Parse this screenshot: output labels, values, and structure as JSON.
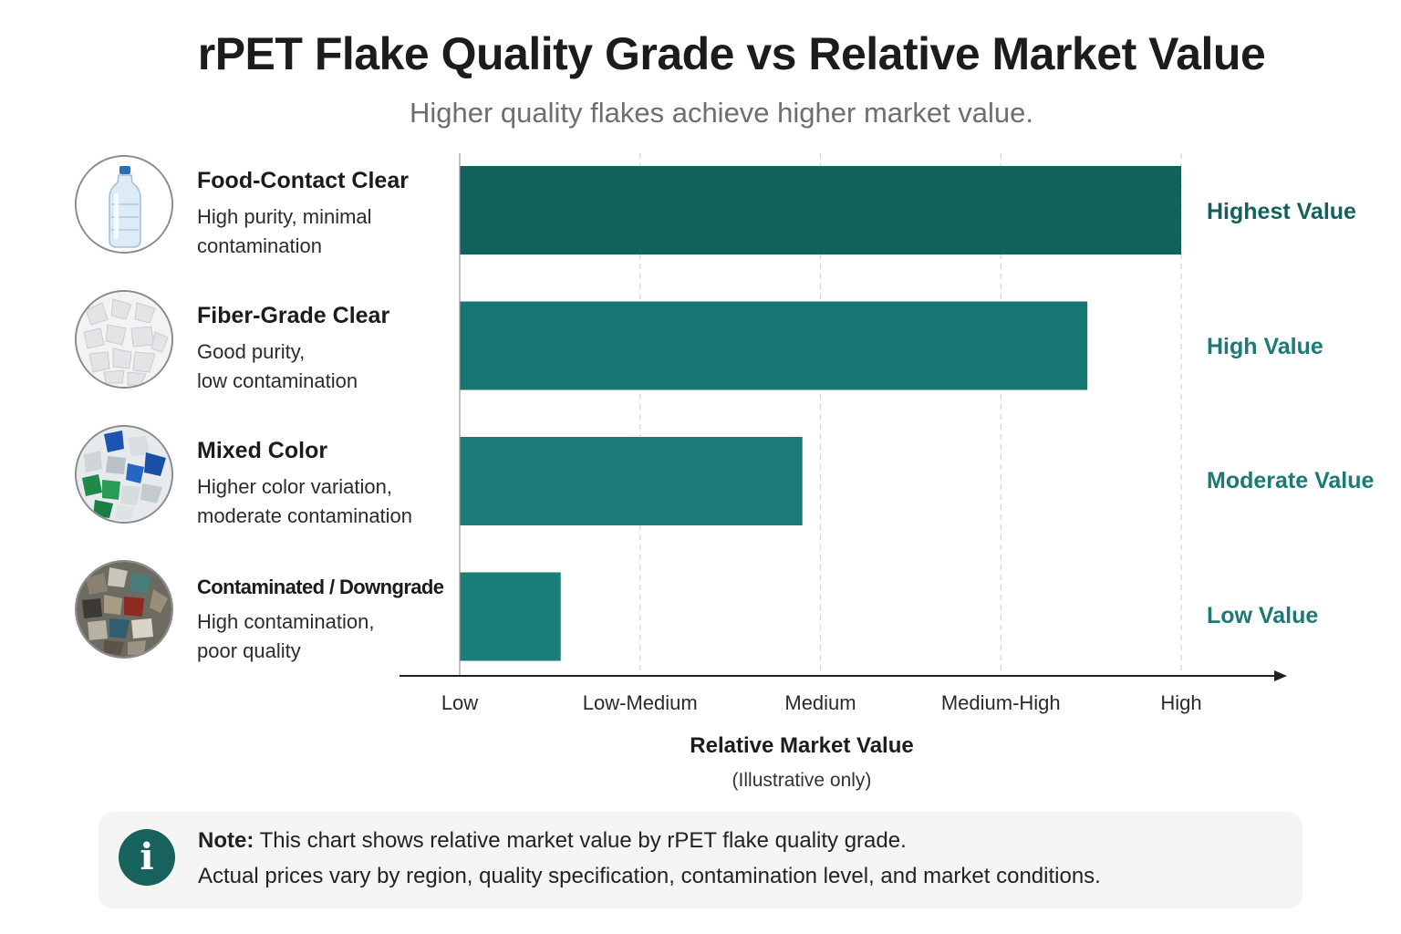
{
  "title": "rPET Flake Quality Grade vs Relative Market Value",
  "subtitle": "Higher quality flakes achieve higher market value.",
  "chart_data": {
    "type": "bar",
    "orientation": "horizontal",
    "categories": [
      "Food-Contact Clear",
      "Fiber-Grade Clear",
      "Mixed Color",
      "Contaminated / Downgrade"
    ],
    "descriptions": [
      [
        "High purity, minimal",
        "contamination"
      ],
      [
        "Good purity,",
        "low contamination"
      ],
      [
        "Higher color variation,",
        "moderate contamination"
      ],
      [
        "High contamination,",
        "poor quality"
      ]
    ],
    "values": [
      4.0,
      3.48,
      1.9,
      0.56
    ],
    "value_labels": [
      "Highest Value",
      "High Value",
      "Moderate Value",
      "Low Value"
    ],
    "xticks": [
      "Low",
      "Low-Medium",
      "Medium",
      "Medium-High",
      "High"
    ],
    "xlim": [
      0,
      4
    ],
    "xlabel": "Relative Market Value",
    "xlabel_note": "(Illustrative only)",
    "grid": "vertical dashed",
    "colors": [
      "#12615b",
      "#177672",
      "#1b7b76",
      "#1c7e79"
    ]
  },
  "note": {
    "label": "Note:",
    "line1": "This chart shows relative market value by rPET flake quality grade.",
    "line2": "Actual prices vary by region, quality specification, contamination level, and market conditions.",
    "icon": "info-icon"
  },
  "icons": [
    "water-bottle-icon",
    "clear-flakes-icon",
    "mixed-color-flakes-icon",
    "contaminated-flakes-icon"
  ]
}
